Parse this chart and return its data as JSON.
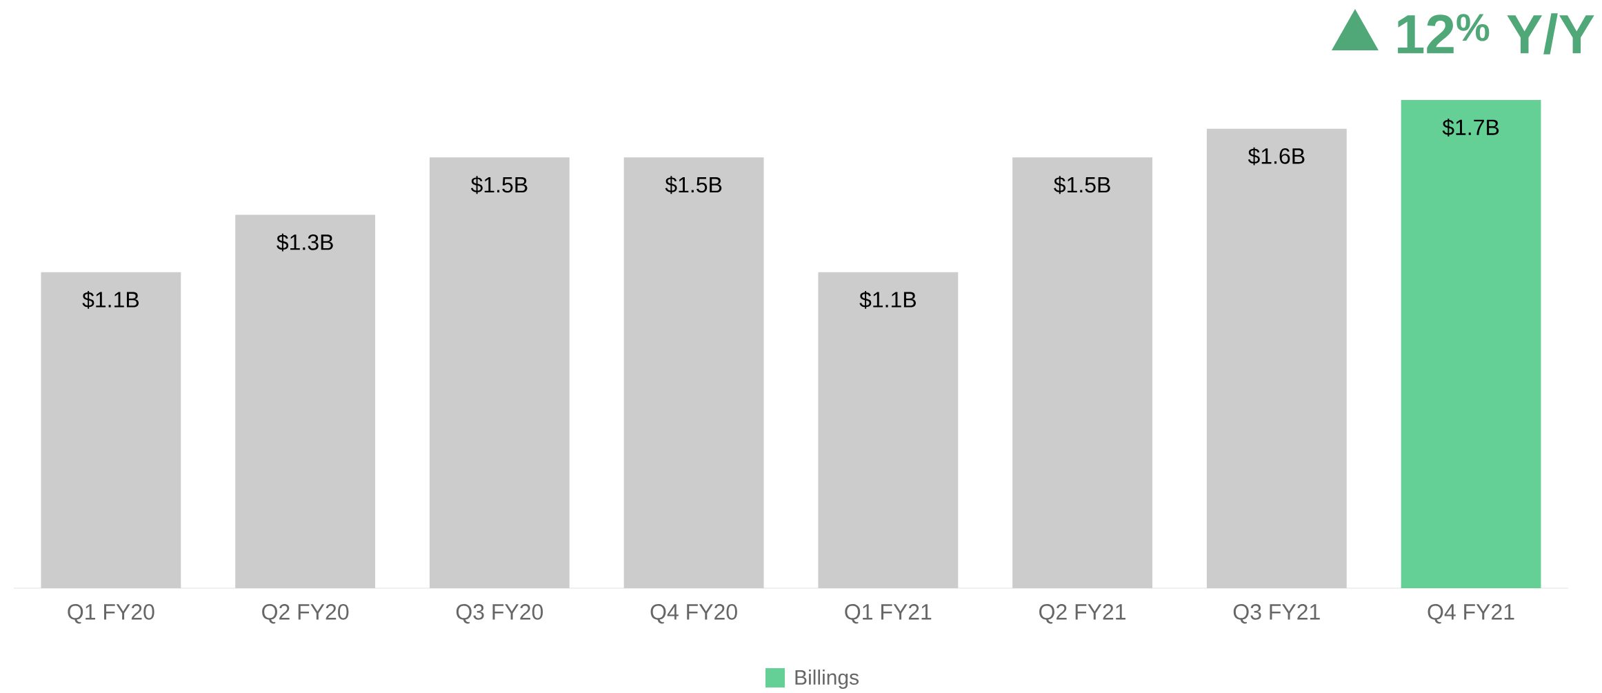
{
  "chart_data": {
    "type": "bar",
    "categories": [
      "Q1 FY20",
      "Q2 FY20",
      "Q3 FY20",
      "Q4 FY20",
      "Q1 FY21",
      "Q2 FY21",
      "Q3 FY21",
      "Q4 FY21"
    ],
    "series": [
      {
        "name": "Billings",
        "color": "#64d096",
        "colors": [
          "#cccccc",
          "#cccccc",
          "#cccccc",
          "#cccccc",
          "#cccccc",
          "#cccccc",
          "#cccccc",
          "#64d096"
        ],
        "values": [
          1.1,
          1.3,
          1.5,
          1.5,
          1.1,
          1.5,
          1.6,
          1.7
        ],
        "value_labels": [
          "$1.1B",
          "$1.3B",
          "$1.5B",
          "$1.5B",
          "$1.1B",
          "$1.5B",
          "$1.6B",
          "$1.7B"
        ]
      }
    ],
    "annotations": [
      "12$^{%}$ Y/Y"
    ],
    "legend": "bottom"
  }
}
